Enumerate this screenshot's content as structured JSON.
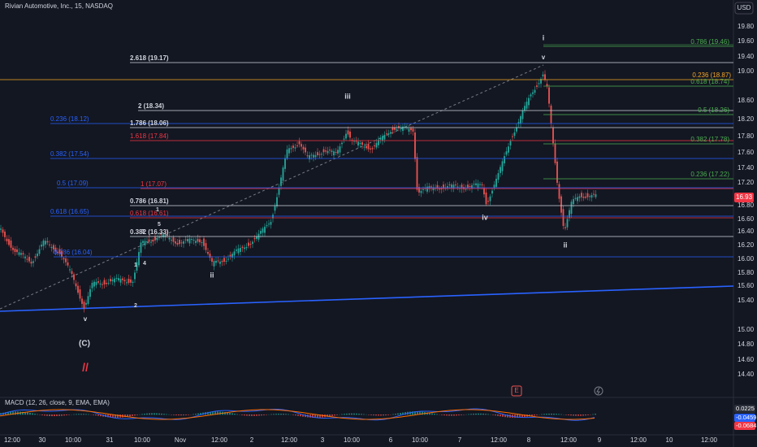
{
  "header": {
    "title": "Rivian Automotive, Inc., 15, NASDAQ",
    "currency": "USD"
  },
  "price_axis": {
    "labels": [
      "19.80",
      "19.60",
      "19.40",
      "19.00",
      "18.60",
      "18.20",
      "17.80",
      "17.60",
      "17.40",
      "17.20",
      "16.80",
      "16.60",
      "16.40",
      "16.20",
      "16.00",
      "15.80",
      "15.60",
      "15.40",
      "15.00",
      "14.80",
      "14.60",
      "14.40"
    ],
    "last_price": "16.93"
  },
  "time_axis": {
    "labels": [
      "12:00",
      "30",
      "10:00",
      "31",
      "10:00",
      "Nov",
      "12:00",
      "2",
      "12:00",
      "3",
      "10:00",
      "6",
      "10:00",
      "7",
      "12:00",
      "8",
      "12:00",
      "9",
      "12:00",
      "10",
      "12:00"
    ]
  },
  "fib_levels": [
    {
      "label": "2.618 (19.17)"
    },
    {
      "label": "0.236 (18.87)"
    },
    {
      "label": "2 (18.34)"
    },
    {
      "label": "0.236 (18.12)"
    },
    {
      "label": "1.786 (18.06)"
    },
    {
      "label": "1.618 (17.84)"
    },
    {
      "label": "0.382 (17.54)"
    },
    {
      "label": "0.5 (17.09)"
    },
    {
      "label": "1 (17.07)"
    },
    {
      "label": "0.786 (16.81)"
    },
    {
      "label": "0.618 (16.65)"
    },
    {
      "label": "0.618 (16.61)"
    },
    {
      "label": "0.382 (16.33)"
    },
    {
      "label": "0.786 (16.04)"
    },
    {
      "label": "0.786 (19.46)"
    },
    {
      "label": "0.618 (18.74)"
    },
    {
      "label": "0.5 (18.26)"
    },
    {
      "label": "0.382 (17.78)"
    },
    {
      "label": "0.236 (17.22)"
    }
  ],
  "wave_labels": [
    "i",
    "v",
    "iii",
    "iv",
    "ii",
    "ii",
    "v",
    "(C)",
    "1",
    "3",
    "5",
    "1",
    "4",
    "2",
    "//"
  ],
  "indicator": {
    "title": "MACD (12, 26, close, 9, EMA, EMA)",
    "values": [
      "0.0225",
      "-0.0459",
      "-0.0684"
    ]
  },
  "markers": [
    "E"
  ]
}
